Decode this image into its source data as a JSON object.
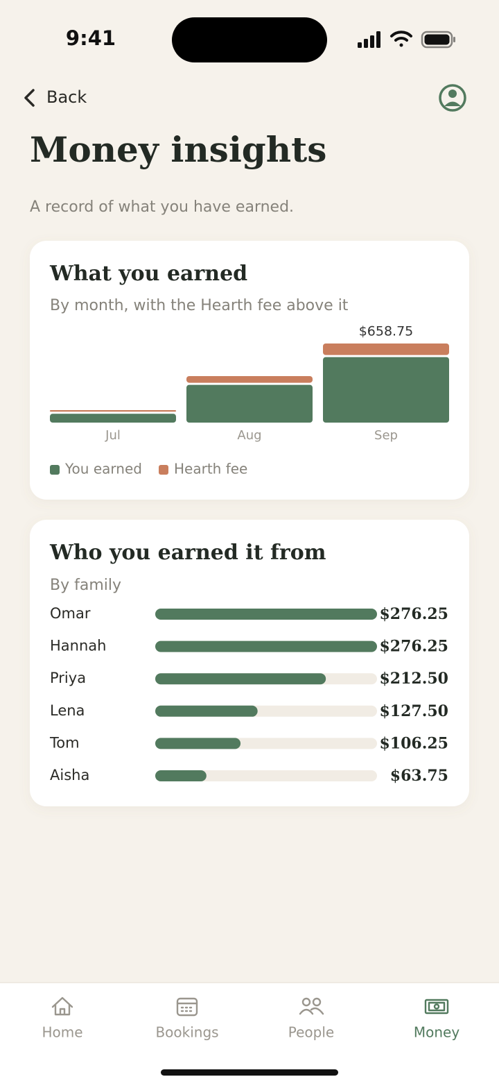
{
  "status_bar": {
    "time": "9:41"
  },
  "nav": {
    "back": "Back"
  },
  "header": {
    "title": "Money insights",
    "subtitle": "A record of what you have earned."
  },
  "chart_data": [
    {
      "type": "bar",
      "stacked": true,
      "title": "What you earned",
      "subtitle": "By month, with the Hearth fee above it",
      "categories": [
        "Jul",
        "Aug",
        "Sep"
      ],
      "series": [
        {
          "name": "You earned",
          "color": "#527a5e",
          "values": [
            76,
            323,
            560
          ]
        },
        {
          "name": "Hearth fee",
          "color": "#c97e5d",
          "values": [
            13,
            57,
            98.75
          ]
        }
      ],
      "annotations": [
        {
          "category": "Sep",
          "value": 658.75,
          "text": "$658.75"
        }
      ],
      "legend": "bottom-left"
    },
    {
      "type": "barh",
      "title": "Who you earned it from",
      "subtitle": "By family",
      "categories": [
        "Omar",
        "Hannah",
        "Priya",
        "Lena",
        "Tom",
        "Aisha"
      ],
      "values": [
        276.25,
        276.25,
        212.5,
        127.5,
        106.25,
        63.75
      ],
      "value_labels": [
        "$276.25",
        "$276.25",
        "$212.50",
        "$127.50",
        "$106.25",
        "$63.75"
      ],
      "color": "#527a5e",
      "track_color": "#f1ece4"
    }
  ],
  "tab_bar": {
    "items": [
      {
        "label": "Home"
      },
      {
        "label": "Bookings"
      },
      {
        "label": "People"
      },
      {
        "label": "Money"
      }
    ],
    "active": 3
  }
}
